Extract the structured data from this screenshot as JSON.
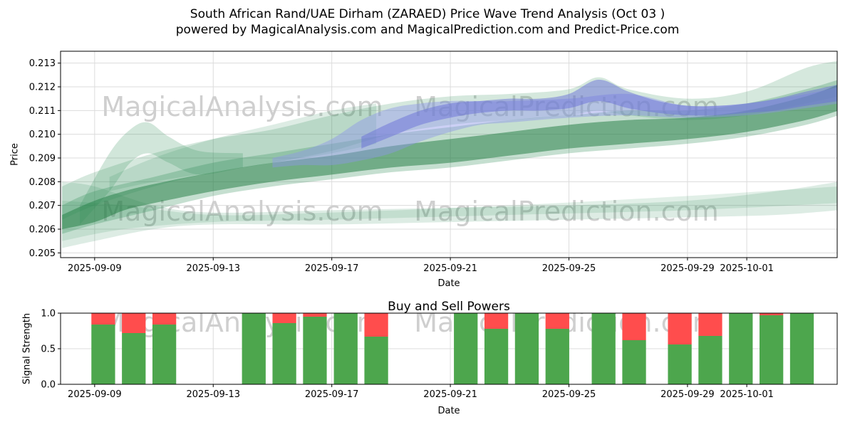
{
  "title": {
    "line1": "South African Rand/UAE Dirham (ZARAED) Price Wave Trend Analysis (Oct 03 )",
    "line2": "powered by MagicalAnalysis.com and MagicalPrediction.com and Predict-Price.com"
  },
  "watermark": {
    "left": "MagicalAnalysis.com",
    "right": "MagicalPrediction.com"
  },
  "colors": {
    "band_green": "#2e8b57",
    "band_green_dark": "#1e7a3e",
    "band_blue_pale": "#8d96e8",
    "band_blue": "#6a6fd8",
    "bar_green": "#4da64d",
    "bar_red": "#ff4d4d",
    "grid": "#dcdcdc",
    "spine": "#000000",
    "watermark": "#cfcfcf",
    "text": "#000000"
  },
  "chart_data": [
    {
      "type": "area",
      "name": "price-wave-trend",
      "title": "",
      "ylabel": "Price",
      "xlabel": "Date",
      "ylim": [
        0.2048,
        0.2135
      ],
      "xlim": [
        -1.15,
        25.05
      ],
      "grid": true,
      "yticks": [
        {
          "v": 0.205,
          "label": "0.205"
        },
        {
          "v": 0.206,
          "label": "0.206"
        },
        {
          "v": 0.207,
          "label": "0.207"
        },
        {
          "v": 0.208,
          "label": "0.208"
        },
        {
          "v": 0.209,
          "label": "0.209"
        },
        {
          "v": 0.21,
          "label": "0.210"
        },
        {
          "v": 0.211,
          "label": "0.211"
        },
        {
          "v": 0.212,
          "label": "0.212"
        },
        {
          "v": 0.213,
          "label": "0.213"
        }
      ],
      "xticks": [
        {
          "day": 0,
          "label": "2025-09-09"
        },
        {
          "day": 4,
          "label": "2025-09-13"
        },
        {
          "day": 8,
          "label": "2025-09-17"
        },
        {
          "day": 12,
          "label": "2025-09-21"
        },
        {
          "day": 16,
          "label": "2025-09-25"
        },
        {
          "day": 20,
          "label": "2025-09-29"
        },
        {
          "day": 22,
          "label": "2025-10-01"
        }
      ],
      "bands": [
        {
          "name": "bottom-wide",
          "color": "#2e8b57",
          "opacity": 0.16,
          "x": [
            -1.1,
            0,
            2,
            4,
            8,
            12,
            16,
            20,
            23,
            25.1
          ],
          "lo": [
            0.2052,
            0.2055,
            0.206,
            0.2062,
            0.2062,
            0.2063,
            0.2064,
            0.2065,
            0.2066,
            0.2068
          ],
          "hi": [
            0.208,
            0.2078,
            0.207,
            0.2067,
            0.2068,
            0.2069,
            0.207,
            0.2072,
            0.2076,
            0.208
          ]
        },
        {
          "name": "bottom-inner",
          "color": "#2e8b57",
          "opacity": 0.14,
          "x": [
            -1.1,
            1,
            4,
            8,
            14,
            20,
            25.1
          ],
          "lo": [
            0.2055,
            0.206,
            0.2063,
            0.2064,
            0.2066,
            0.2068,
            0.2071
          ],
          "hi": [
            0.2072,
            0.207,
            0.2066,
            0.2067,
            0.207,
            0.2074,
            0.2078
          ]
        },
        {
          "name": "mid-band",
          "color": "#2e8b57",
          "opacity": 0.28,
          "x": [
            -1.1,
            0,
            2,
            4,
            6,
            8,
            10,
            12,
            14,
            16,
            18,
            20,
            22,
            24,
            25.1
          ],
          "lo": [
            0.2058,
            0.2062,
            0.2068,
            0.2074,
            0.2078,
            0.2081,
            0.2084,
            0.2086,
            0.2089,
            0.2092,
            0.2094,
            0.2096,
            0.2099,
            0.2104,
            0.2108
          ],
          "hi": [
            0.207,
            0.2076,
            0.2082,
            0.2088,
            0.2092,
            0.2096,
            0.21,
            0.2103,
            0.2106,
            0.2108,
            0.211,
            0.211,
            0.2113,
            0.2119,
            0.2123
          ]
        },
        {
          "name": "core-band",
          "color": "#1e7a3e",
          "opacity": 0.5,
          "x": [
            -1.1,
            0,
            1,
            2,
            4,
            6,
            8,
            10,
            12,
            14,
            16,
            18,
            20,
            22,
            24,
            25.1
          ],
          "lo": [
            0.206,
            0.2063,
            0.2068,
            0.2071,
            0.2076,
            0.208,
            0.2083,
            0.2086,
            0.2088,
            0.2091,
            0.2094,
            0.2096,
            0.2098,
            0.2101,
            0.2106,
            0.211
          ],
          "hi": [
            0.2066,
            0.2072,
            0.2076,
            0.2079,
            0.2084,
            0.2088,
            0.2091,
            0.2095,
            0.2098,
            0.2101,
            0.2104,
            0.2106,
            0.2107,
            0.211,
            0.2116,
            0.2121
          ]
        },
        {
          "name": "upper-band",
          "color": "#2e8b57",
          "opacity": 0.2,
          "x": [
            -1.1,
            0,
            2,
            4,
            6,
            8,
            10,
            12,
            14,
            16,
            17,
            18,
            20,
            22,
            24,
            25.1
          ],
          "lo": [
            0.2064,
            0.207,
            0.2078,
            0.2084,
            0.2088,
            0.2093,
            0.21,
            0.2104,
            0.2106,
            0.2108,
            0.211,
            0.2108,
            0.2106,
            0.2108,
            0.2113,
            0.2116
          ],
          "hi": [
            0.2078,
            0.2084,
            0.2092,
            0.2098,
            0.2102,
            0.2108,
            0.2113,
            0.2116,
            0.2117,
            0.2119,
            0.2124,
            0.2119,
            0.2115,
            0.2118,
            0.2128,
            0.2131
          ]
        },
        {
          "name": "left-spike",
          "color": "#2e8b57",
          "opacity": 0.22,
          "x": [
            -0.5,
            0.5,
            1.2,
            1.8,
            2.5,
            3.5,
            5
          ],
          "lo": [
            0.2062,
            0.2076,
            0.2088,
            0.2092,
            0.2088,
            0.2083,
            0.2086
          ],
          "hi": [
            0.207,
            0.2092,
            0.2102,
            0.2105,
            0.2099,
            0.2093,
            0.2092
          ]
        },
        {
          "name": "left-fan",
          "color": "#2e8b57",
          "opacity": 0.16,
          "x": [
            0.5,
            2,
            4,
            6,
            8,
            9.5
          ],
          "lo": [
            0.2076,
            0.208,
            0.2084,
            0.2088,
            0.2092,
            0.2096
          ],
          "hi": [
            0.2082,
            0.209,
            0.2098,
            0.2104,
            0.211,
            0.2113
          ]
        },
        {
          "name": "forecast-blue-wide",
          "color": "#8d96e8",
          "opacity": 0.45,
          "x": [
            6,
            7,
            8,
            9,
            10,
            11,
            12,
            13,
            14,
            16,
            18,
            20,
            22,
            24,
            25.1
          ],
          "lo": [
            0.2086,
            0.2087,
            0.2087,
            0.2089,
            0.2092,
            0.2097,
            0.2101,
            0.2104,
            0.2105,
            0.2107,
            0.2108,
            0.2107,
            0.2108,
            0.2111,
            0.2113
          ],
          "hi": [
            0.209,
            0.2093,
            0.2098,
            0.2106,
            0.2111,
            0.2113,
            0.2114,
            0.2114,
            0.2114,
            0.2115,
            0.2117,
            0.2112,
            0.2113,
            0.2117,
            0.212
          ]
        },
        {
          "name": "forecast-blue-core",
          "color": "#6a6fd8",
          "opacity": 0.5,
          "x": [
            9,
            10,
            11,
            12,
            13,
            14,
            15,
            16,
            17,
            18,
            19,
            20,
            21,
            22,
            23,
            24,
            25.1
          ],
          "lo": [
            0.2094,
            0.2099,
            0.2104,
            0.2107,
            0.2109,
            0.211,
            0.211,
            0.2111,
            0.2114,
            0.2111,
            0.2109,
            0.2108,
            0.2108,
            0.2109,
            0.211,
            0.2112,
            0.2114
          ],
          "hi": [
            0.2099,
            0.2105,
            0.211,
            0.2113,
            0.2114,
            0.2115,
            0.2115,
            0.2117,
            0.2123,
            0.2118,
            0.2114,
            0.2112,
            0.2112,
            0.2113,
            0.2115,
            0.2118,
            0.2121
          ]
        }
      ]
    },
    {
      "type": "bar",
      "name": "buy-sell-powers",
      "title": "Buy and Sell Powers",
      "ylabel": "Signal Strength",
      "xlabel": "Date",
      "ylim": [
        0,
        1.0
      ],
      "xlim": [
        -1.15,
        25.05
      ],
      "grid": true,
      "bar_width_days": 0.8,
      "yticks": [
        {
          "v": 0.0,
          "label": "0.0"
        },
        {
          "v": 0.5,
          "label": "0.5"
        },
        {
          "v": 1.0,
          "label": "1.0"
        }
      ],
      "xticks": [
        {
          "day": 0,
          "label": "2025-09-09"
        },
        {
          "day": 4,
          "label": "2025-09-13"
        },
        {
          "day": 8,
          "label": "2025-09-17"
        },
        {
          "day": 12,
          "label": "2025-09-21"
        },
        {
          "day": 16,
          "label": "2025-09-25"
        },
        {
          "day": 20,
          "label": "2025-09-29"
        },
        {
          "day": 22,
          "label": "2025-10-01"
        }
      ],
      "bars": [
        {
          "day": 0.29,
          "buy": 0.84,
          "sell": 0.16
        },
        {
          "day": 1.32,
          "buy": 0.72,
          "sell": 0.28
        },
        {
          "day": 2.35,
          "buy": 0.84,
          "sell": 0.16
        },
        {
          "day": 5.37,
          "buy": 1.0,
          "sell": 0.0
        },
        {
          "day": 6.4,
          "buy": 0.86,
          "sell": 0.14
        },
        {
          "day": 7.43,
          "buy": 0.95,
          "sell": 0.05
        },
        {
          "day": 8.47,
          "buy": 1.0,
          "sell": 0.0
        },
        {
          "day": 9.5,
          "buy": 0.67,
          "sell": 0.33
        },
        {
          "day": 12.52,
          "buy": 1.0,
          "sell": 0.0
        },
        {
          "day": 13.55,
          "buy": 0.78,
          "sell": 0.22
        },
        {
          "day": 14.58,
          "buy": 1.0,
          "sell": 0.0
        },
        {
          "day": 15.61,
          "buy": 0.78,
          "sell": 0.22
        },
        {
          "day": 17.17,
          "buy": 1.0,
          "sell": 0.0
        },
        {
          "day": 18.2,
          "buy": 0.62,
          "sell": 0.38
        },
        {
          "day": 19.74,
          "buy": 0.56,
          "sell": 0.44
        },
        {
          "day": 20.77,
          "buy": 0.68,
          "sell": 0.32
        },
        {
          "day": 21.8,
          "buy": 1.0,
          "sell": 0.0
        },
        {
          "day": 22.83,
          "buy": 0.97,
          "sell": 0.03
        },
        {
          "day": 23.86,
          "buy": 1.0,
          "sell": 0.0
        }
      ]
    }
  ]
}
